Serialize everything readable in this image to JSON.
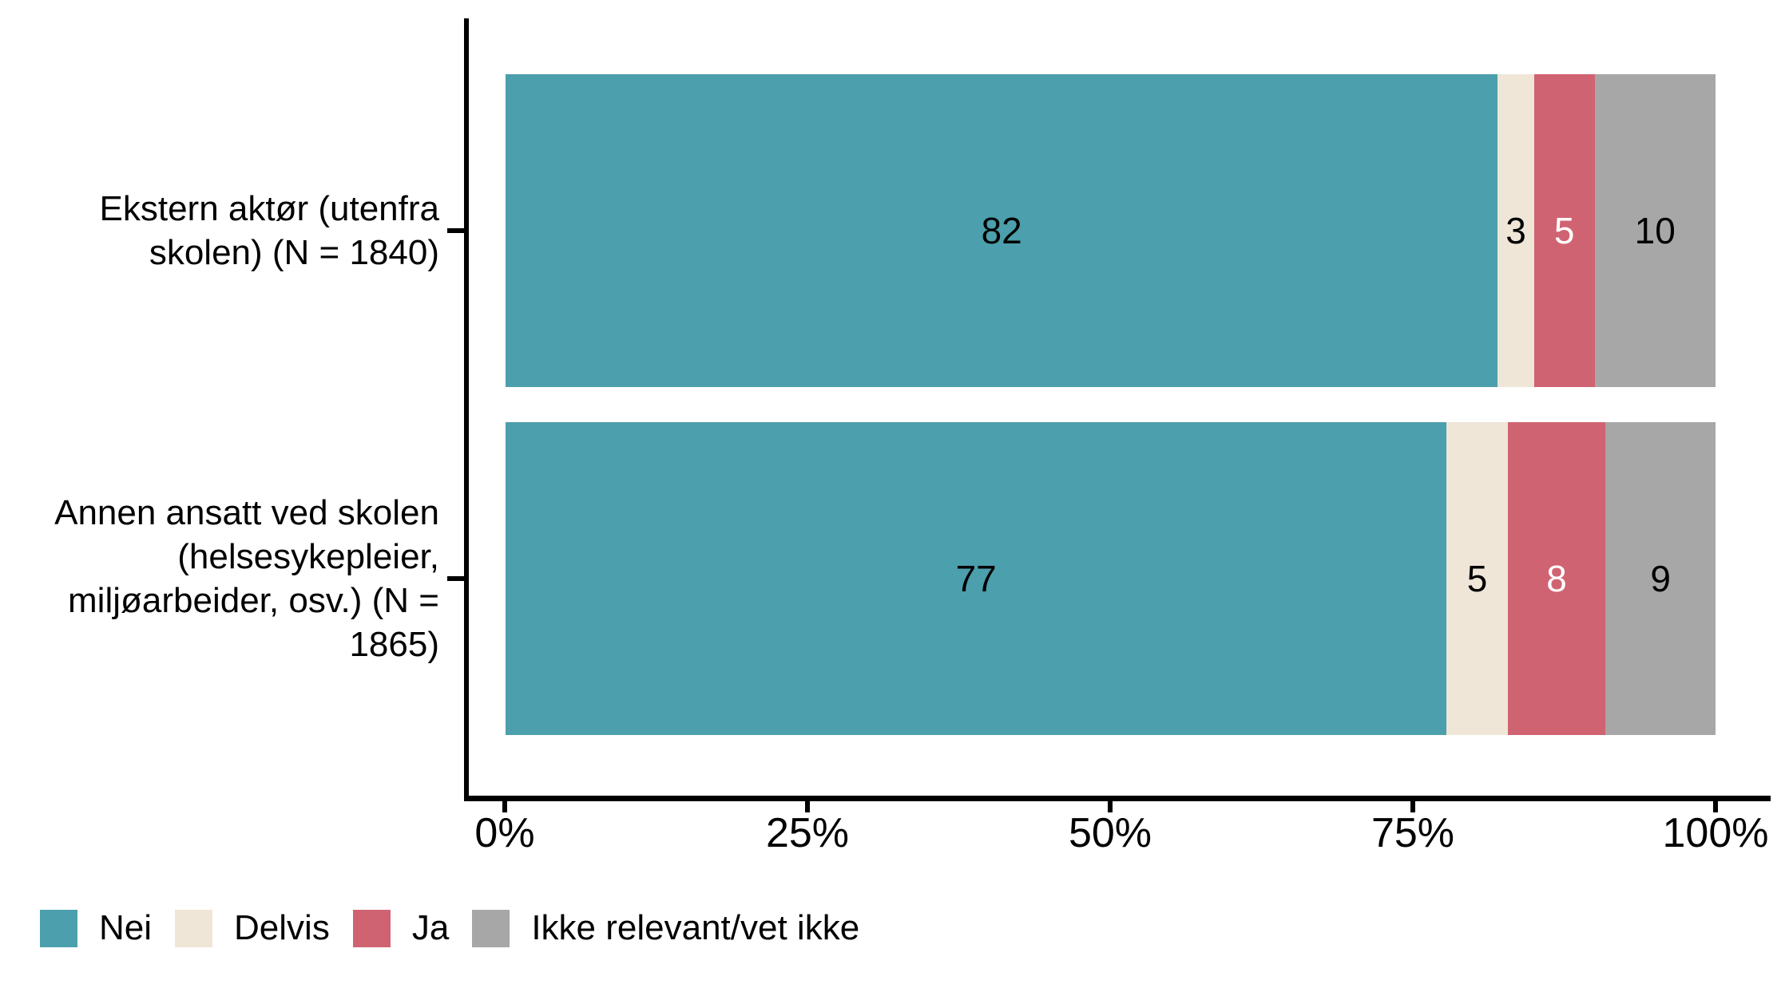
{
  "chart_data": {
    "type": "bar",
    "orientation": "horizontal",
    "stacked": true,
    "value_unit": "%",
    "grid": false,
    "legend_position": "bottom-left",
    "categories": [
      "Ekstern aktør (utenfra skolen) (N = 1840)",
      "Annen ansatt ved skolen (helsesykepleier, miljøarbeider, osv.) (N = 1865)"
    ],
    "category_lines": [
      [
        "Ekstern aktør (utenfra",
        "skolen) (N = 1840)"
      ],
      [
        "Annen ansatt ved skolen",
        "(helsesykepleier,",
        "miljøarbeider, osv.) (N =",
        "1865)"
      ]
    ],
    "series": [
      {
        "name": "Nei",
        "color": "#4C9FAC",
        "label_color": "#000000",
        "values": [
          82,
          77
        ]
      },
      {
        "name": "Delvis",
        "color": "#EFE6D7",
        "label_color": "#000000",
        "values": [
          3,
          5
        ]
      },
      {
        "name": "Ja",
        "color": "#D06372",
        "label_color": "#FFFFFF",
        "values": [
          5,
          8
        ]
      },
      {
        "name": "Ikke relevant/vet ikke",
        "color": "#A7A7A7",
        "label_color": "#000000",
        "values": [
          10,
          9
        ]
      }
    ],
    "x_ticks": [
      "0%",
      "25%",
      "50%",
      "75%",
      "100%"
    ],
    "xlim": [
      0,
      100
    ],
    "axis_color": "#000000",
    "text_color": "#000000",
    "background_color": "#FFFFFF"
  }
}
